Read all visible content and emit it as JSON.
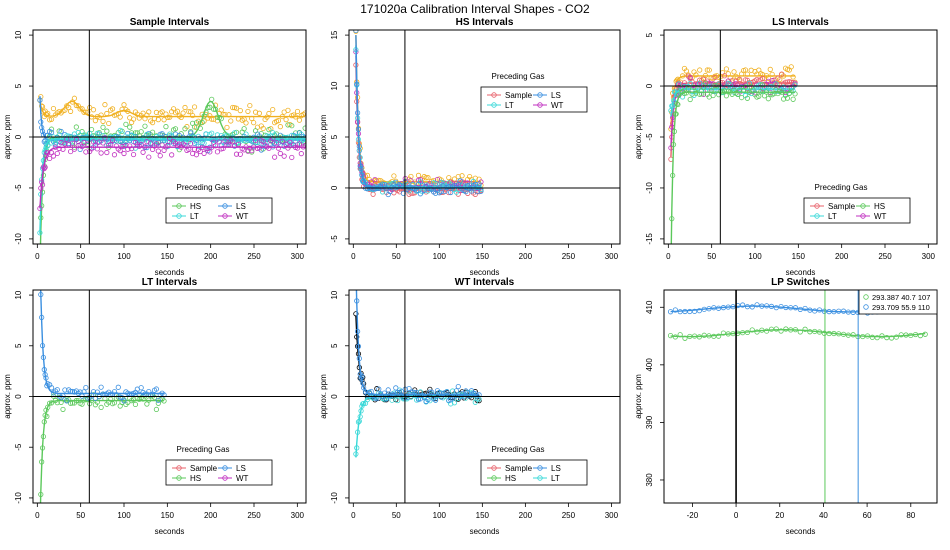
{
  "figure": {
    "title": "171020a   Calibration Interval Shapes - CO2"
  },
  "colors": {
    "Sample": "#e8606a",
    "HS": "#5bc85b",
    "LS": "#3a8fe0",
    "LT": "#38d8d8",
    "WT": "#c030c0",
    "orange": "#f0b020",
    "black": "#000000"
  },
  "chart_data": [
    {
      "type": "scatter",
      "title": "Sample Intervals",
      "xlabel": "seconds",
      "ylabel": "approx. ppm",
      "xlim": [
        -5,
        310
      ],
      "ylim": [
        -10.5,
        10.5
      ],
      "xticks": [
        0,
        50,
        100,
        150,
        200,
        250,
        300
      ],
      "yticks": [
        -10,
        -5,
        0,
        5,
        10
      ],
      "vline": 60,
      "hline": 0,
      "legend": {
        "title": "Preceding Gas",
        "entries": [
          "HS",
          "LS",
          "LT",
          "WT"
        ]
      },
      "series": [
        {
          "key": "orange",
          "start": 3.5,
          "tau": 3,
          "level": 2.0,
          "end": 310,
          "noise": 0.9,
          "bump": [
            [
              40,
              1.5
            ],
            [
              100,
              0.6
            ]
          ]
        },
        {
          "key": "HS",
          "start": -13,
          "tau": 3,
          "level": 0.0,
          "end": 310,
          "noise": 0.9,
          "bump": [
            [
              200,
              3.5
            ]
          ]
        },
        {
          "key": "LS",
          "start": 4,
          "tau": 2,
          "level": -0.3,
          "end": 310,
          "noise": 0.7
        },
        {
          "key": "LT",
          "start": -9.5,
          "tau": 2.5,
          "level": -0.2,
          "end": 310,
          "noise": 0.6
        },
        {
          "key": "WT",
          "start": -7,
          "tau": 4,
          "level": -1.0,
          "end": 310,
          "noise": 0.7
        }
      ]
    },
    {
      "type": "scatter",
      "title": "HS Intervals",
      "xlabel": "seconds",
      "ylabel": "approx. ppm",
      "xlim": [
        -5,
        310
      ],
      "ylim": [
        -5.5,
        15.5
      ],
      "xticks": [
        0,
        50,
        100,
        150,
        200,
        250,
        300
      ],
      "yticks": [
        -5,
        0,
        5,
        10,
        15
      ],
      "vline": 60,
      "hline": 0,
      "legend": {
        "title": "Preceding Gas",
        "entries": [
          "Sample",
          "LS",
          "LT",
          "WT"
        ]
      },
      "series": [
        {
          "key": "orange",
          "start": 15,
          "tau": 3,
          "level": 0.6,
          "end": 150,
          "noise": 0.6
        },
        {
          "key": "Sample",
          "start": 12,
          "tau": 3,
          "level": -0.2,
          "end": 150,
          "noise": 0.5
        },
        {
          "key": "WT",
          "start": 13,
          "tau": 3,
          "level": 0.2,
          "end": 150,
          "noise": 0.5
        },
        {
          "key": "LT",
          "start": 14,
          "tau": 3,
          "level": 0.1,
          "end": 150,
          "noise": 0.5
        },
        {
          "key": "LS",
          "start": 15,
          "tau": 3,
          "level": 0.0,
          "end": 150,
          "noise": 0.6
        }
      ]
    },
    {
      "type": "scatter",
      "title": "LS Intervals",
      "xlabel": "seconds",
      "ylabel": "approx. ppm",
      "xlim": [
        -5,
        310
      ],
      "ylim": [
        -15.5,
        5.5
      ],
      "xticks": [
        0,
        50,
        100,
        150,
        200,
        250,
        300
      ],
      "yticks": [
        -15,
        -10,
        -5,
        0,
        5
      ],
      "vline": 60,
      "hline": 0,
      "legend": {
        "title": "Preceding Gas",
        "entries": [
          "Sample",
          "HS",
          "LT",
          "WT"
        ]
      },
      "series": [
        {
          "key": "orange",
          "start": -4,
          "tau": 3,
          "level": 1.0,
          "end": 148,
          "noise": 0.7
        },
        {
          "key": "Sample",
          "start": -7,
          "tau": 3,
          "level": 0.3,
          "end": 148,
          "noise": 0.6
        },
        {
          "key": "WT",
          "start": -6,
          "tau": 3,
          "level": 0.0,
          "end": 148,
          "noise": 0.6
        },
        {
          "key": "LT",
          "start": -3,
          "tau": 3,
          "level": -0.3,
          "end": 148,
          "noise": 0.5
        },
        {
          "key": "HS",
          "start": -18,
          "tau": 2.5,
          "level": -0.6,
          "end": 148,
          "noise": 0.6
        }
      ]
    },
    {
      "type": "scatter",
      "title": "LT Intervals",
      "xlabel": "seconds",
      "ylabel": "approx. ppm",
      "xlim": [
        -5,
        310
      ],
      "ylim": [
        -10.5,
        10.5
      ],
      "xticks": [
        0,
        50,
        100,
        150,
        200,
        250,
        300
      ],
      "yticks": [
        -10,
        -5,
        0,
        5,
        10
      ],
      "vline": 60,
      "hline": 0,
      "legend": {
        "title": "Preceding Gas",
        "entries": [
          "Sample",
          "LS",
          "HS",
          "WT"
        ]
      },
      "series": [
        {
          "key": "HS",
          "start": -13,
          "tau": 3,
          "level": -0.4,
          "end": 148,
          "noise": 0.6
        },
        {
          "key": "LS",
          "start": 14,
          "tau": 3,
          "level": 0.3,
          "end": 148,
          "noise": 0.6
        }
      ]
    },
    {
      "type": "scatter",
      "title": "WT Intervals",
      "xlabel": "seconds",
      "ylabel": "approx. ppm",
      "xlim": [
        -5,
        310
      ],
      "ylim": [
        -10.5,
        10.5
      ],
      "xticks": [
        0,
        50,
        100,
        150,
        200,
        250,
        300
      ],
      "yticks": [
        -10,
        -5,
        0,
        5,
        10
      ],
      "vline": 60,
      "hline": 0,
      "legend": {
        "title": "Preceding Gas",
        "entries": [
          "Sample",
          "LS",
          "HS",
          "LT"
        ]
      },
      "series": [
        {
          "key": "black",
          "start": 8,
          "tau": 4,
          "level": 0.1,
          "end": 148,
          "noise": 0.5
        },
        {
          "key": "LT",
          "start": -6,
          "tau": 4,
          "level": 0.0,
          "end": 148,
          "noise": 0.5
        },
        {
          "key": "LS",
          "start": 13,
          "tau": 3,
          "level": 0.2,
          "end": 148,
          "noise": 0.6
        }
      ]
    },
    {
      "type": "scatter",
      "title": "LP Switches",
      "xlabel": "seconds",
      "ylabel": "approx. ppm",
      "xlim": [
        -33,
        92
      ],
      "ylim": [
        376,
        413
      ],
      "xticks": [
        -20,
        0,
        20,
        40,
        60,
        80
      ],
      "yticks": [
        380,
        390,
        400,
        410
      ],
      "vline": 0,
      "legend": {
        "entries": [
          "293.387 40.7 107",
          "293.709 55.9 110"
        ],
        "position": "top-right"
      },
      "switch_lines": [
        {
          "x": 40.7,
          "key": "HS"
        },
        {
          "x": 55.9,
          "key": "LS"
        }
      ],
      "series": [
        {
          "key": "HS",
          "x0": -30,
          "x1": 88,
          "level": 405.5,
          "noise": 0.25,
          "wave": 0.6
        },
        {
          "key": "LS",
          "x0": -30,
          "x1": 88,
          "level": 409.7,
          "noise": 0.25,
          "wave": 0.5
        }
      ]
    }
  ]
}
